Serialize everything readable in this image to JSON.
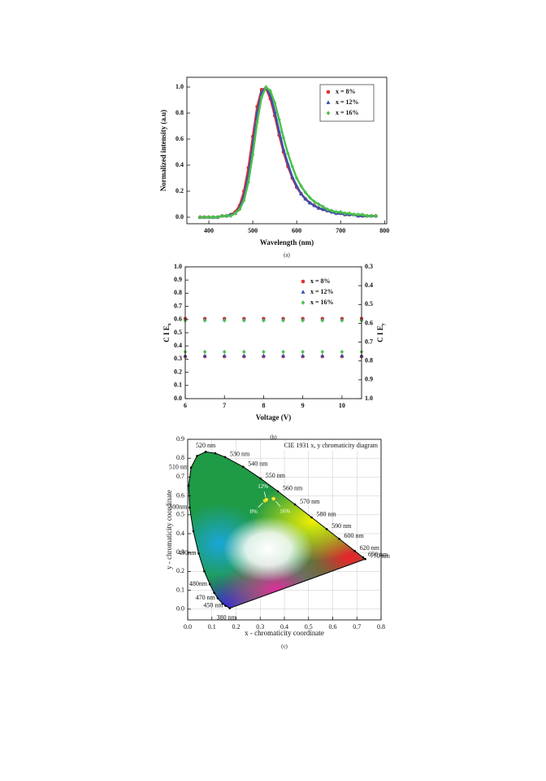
{
  "chart_data": [
    {
      "type": "line",
      "caption": "(a)",
      "xlabel": "Wavelength (nm)",
      "ylabel": "Normalized intensity (a.u)",
      "x": [
        380,
        390,
        400,
        410,
        420,
        430,
        440,
        450,
        460,
        470,
        480,
        490,
        500,
        510,
        520,
        530,
        540,
        550,
        560,
        570,
        580,
        590,
        600,
        610,
        620,
        630,
        640,
        650,
        660,
        670,
        680,
        690,
        700,
        710,
        720,
        730,
        740,
        750,
        760,
        770,
        780
      ],
      "series": [
        {
          "name": "x = 8%",
          "color": "#e03030",
          "marker": "circle",
          "values": [
            0,
            0,
            0,
            0,
            0,
            0.01,
            0.01,
            0.02,
            0.04,
            0.09,
            0.2,
            0.38,
            0.62,
            0.85,
            0.98,
            0.99,
            0.91,
            0.78,
            0.63,
            0.5,
            0.39,
            0.3,
            0.23,
            0.18,
            0.14,
            0.11,
            0.09,
            0.07,
            0.06,
            0.05,
            0.04,
            0.03,
            0.03,
            0.02,
            0.02,
            0.02,
            0.01,
            0.01,
            0.01,
            0.01,
            0.01
          ]
        },
        {
          "name": "x = 12%",
          "color": "#3a4fb0",
          "marker": "triangle",
          "values": [
            0,
            0,
            0,
            0,
            0,
            0.01,
            0.01,
            0.02,
            0.03,
            0.07,
            0.16,
            0.32,
            0.55,
            0.8,
            0.96,
            1.0,
            0.94,
            0.81,
            0.66,
            0.52,
            0.41,
            0.31,
            0.24,
            0.18,
            0.14,
            0.11,
            0.09,
            0.07,
            0.06,
            0.05,
            0.04,
            0.03,
            0.03,
            0.02,
            0.02,
            0.02,
            0.01,
            0.01,
            0.01,
            0.01,
            0.01
          ]
        },
        {
          "name": "x = 16%",
          "color": "#4cbf4c",
          "marker": "diamond",
          "values": [
            0,
            0,
            0,
            0,
            0,
            0.01,
            0.01,
            0.01,
            0.03,
            0.06,
            0.13,
            0.27,
            0.48,
            0.73,
            0.92,
            1.0,
            0.97,
            0.88,
            0.75,
            0.61,
            0.49,
            0.39,
            0.3,
            0.24,
            0.19,
            0.15,
            0.12,
            0.1,
            0.08,
            0.06,
            0.05,
            0.04,
            0.04,
            0.03,
            0.03,
            0.02,
            0.02,
            0.02,
            0.01,
            0.01,
            0.01
          ]
        }
      ],
      "xlim": [
        350,
        805
      ],
      "xticks": [
        400,
        500,
        600,
        700,
        800
      ],
      "ylim": [
        -0.05,
        1.075
      ],
      "yticks": [
        {
          "value": 0,
          "label": "0.0"
        },
        0.2,
        0.4,
        0.6,
        0.8,
        {
          "value": 1,
          "label": "1.0"
        }
      ],
      "legend": "upper right",
      "legend_frame": true
    },
    {
      "type": "scatter",
      "caption": "(b)",
      "xlabel": "Voltage (V)",
      "ylabel": "C I E",
      "ylabel_sub": "x",
      "y2label": "C I E",
      "y2label_sub": "y",
      "x": [
        6,
        6.5,
        7,
        7.5,
        8,
        8.5,
        9,
        9.5,
        10,
        10.5
      ],
      "series": [
        {
          "name": "x = 8%",
          "color": "#e03030",
          "marker": "circle",
          "values": [
            0.32,
            0.32,
            0.32,
            0.32,
            0.32,
            0.32,
            0.32,
            0.32,
            0.32,
            0.32
          ],
          "y2_values": [
            0.575,
            0.575,
            0.575,
            0.575,
            0.575,
            0.575,
            0.575,
            0.575,
            0.575,
            0.575
          ]
        },
        {
          "name": "x = 12%",
          "color": "#3a4fb0",
          "marker": "triangle",
          "values": [
            0.325,
            0.325,
            0.325,
            0.325,
            0.325,
            0.325,
            0.325,
            0.325,
            0.325,
            0.325
          ],
          "y2_values": [
            0.58,
            0.58,
            0.58,
            0.58,
            0.58,
            0.58,
            0.58,
            0.58,
            0.58,
            0.58
          ]
        },
        {
          "name": "x = 16%",
          "color": "#4cbf4c",
          "marker": "diamond",
          "values": [
            0.355,
            0.355,
            0.355,
            0.355,
            0.355,
            0.355,
            0.355,
            0.355,
            0.355,
            0.355
          ],
          "y2_values": [
            0.585,
            0.585,
            0.585,
            0.585,
            0.585,
            0.585,
            0.585,
            0.585,
            0.585,
            0.585
          ]
        }
      ],
      "xlim": [
        6,
        10.5
      ],
      "xticks": [
        6,
        7,
        8,
        9,
        10
      ],
      "ylim": [
        0,
        1
      ],
      "yticks": [
        {
          "value": 0,
          "label": "0.0"
        },
        0.1,
        0.2,
        0.3,
        0.4,
        0.5,
        0.6,
        0.7,
        0.8,
        0.9,
        {
          "value": 1,
          "label": "1.0"
        }
      ],
      "y2lim": [
        1,
        0.3
      ],
      "y2ticks": [
        0.3,
        0.4,
        0.5,
        0.6,
        0.7,
        0.8,
        0.9,
        {
          "value": 1,
          "label": "1.0"
        }
      ],
      "legend": "upper right",
      "legend_frame": false
    },
    {
      "type": "chromaticity",
      "caption": "(c)",
      "title": "CIE 1931 x, y chromaticity diagram",
      "xlabel": "x - chromaticity coordinate",
      "ylabel": "y - chromaticity coordinate",
      "locus": {
        "labels": [
          "380 nm",
          "450 nm",
          null,
          "470 nm",
          null,
          "480nm",
          null,
          "490nm",
          null,
          "500nm",
          null,
          "510 nm",
          null,
          "520 nm",
          null,
          "530 nm",
          "540 nm",
          "550 nm",
          "560 nm",
          "570 nm",
          "580 nm",
          "590 nm",
          "600 nm",
          "620 nm",
          "650 nm",
          "770 nm"
        ],
        "x": [
          0.1741,
          0.1566,
          0.144,
          0.1241,
          0.1096,
          0.0913,
          0.0687,
          0.0454,
          0.0235,
          0.0082,
          0.0039,
          0.0139,
          0.0389,
          0.0743,
          0.1142,
          0.1547,
          0.2296,
          0.3016,
          0.3731,
          0.4441,
          0.5125,
          0.5752,
          0.627,
          0.6915,
          0.726,
          0.7347
        ],
        "y": [
          0.005,
          0.0177,
          0.0297,
          0.0578,
          0.0868,
          0.1327,
          0.2007,
          0.295,
          0.4127,
          0.5384,
          0.6548,
          0.7502,
          0.812,
          0.8338,
          0.8262,
          0.8059,
          0.7543,
          0.6923,
          0.6245,
          0.5547,
          0.4866,
          0.4242,
          0.3725,
          0.3083,
          0.274,
          0.2653
        ]
      },
      "points": {
        "labels": [
          "8%",
          "12%",
          "16%"
        ],
        "x": [
          0.32,
          0.325,
          0.355
        ],
        "y": [
          0.575,
          0.58,
          0.585
        ]
      },
      "xlim": [
        0,
        0.8
      ],
      "xticks": [
        {
          "value": 0,
          "label": "0.0"
        },
        0.1,
        0.2,
        0.3,
        0.4,
        0.5,
        0.6,
        0.7,
        0.8
      ],
      "ylim": [
        -0.057,
        0.9
      ],
      "yticks": [
        {
          "value": 0,
          "label": "0.0"
        },
        0.1,
        0.2,
        0.3,
        0.4,
        0.5,
        0.6,
        0.7,
        0.8,
        0.9
      ],
      "grid": true
    }
  ]
}
